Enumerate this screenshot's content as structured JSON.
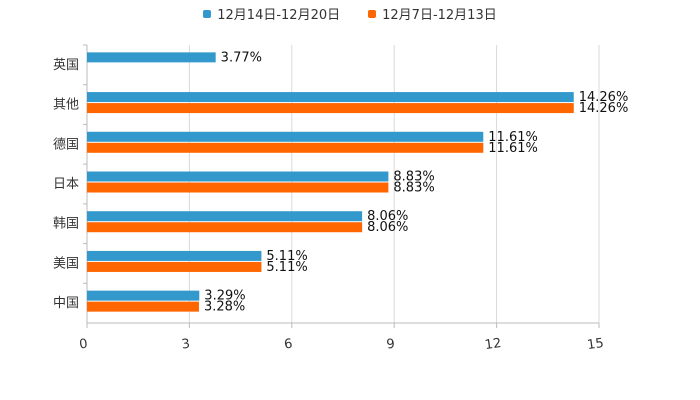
{
  "chart_data": {
    "type": "bar",
    "orientation": "horizontal",
    "title": "",
    "xlabel": "",
    "ylabel": "",
    "xlim": [
      0,
      15
    ],
    "x_ticks": [
      "0",
      "3",
      "6",
      "9",
      "12",
      "15"
    ],
    "x_tick_values": [
      0,
      3,
      6,
      9,
      12,
      15
    ],
    "grid": true,
    "legend_position": "top-center",
    "categories": [
      "英国",
      "其他",
      "德国",
      "日本",
      "韩国",
      "美国",
      "中国"
    ],
    "series": [
      {
        "name": "12月14日-12月20日",
        "color": "#3399cc",
        "values": [
          3.77,
          14.26,
          11.61,
          8.83,
          8.06,
          5.11,
          3.29
        ],
        "labels": [
          "3.77%",
          "14.26%",
          "11.61%",
          "8.83%",
          "8.06%",
          "5.11%",
          "3.29%"
        ]
      },
      {
        "name": "12月7日-12月13日",
        "color": "#ff6600",
        "values": [
          null,
          14.26,
          11.61,
          8.83,
          8.06,
          5.11,
          3.28
        ],
        "labels": [
          null,
          "14.26%",
          "11.61%",
          "8.83%",
          "8.06%",
          "5.11%",
          "3.28%"
        ]
      }
    ]
  }
}
